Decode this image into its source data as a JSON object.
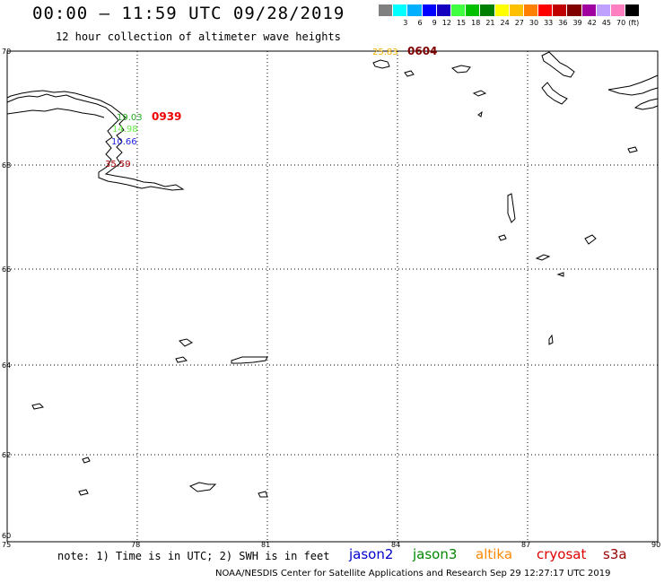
{
  "header": {
    "title": "00:00 – 11:59 UTC 09/28/2019",
    "subtitle": "12 hour collection of altimeter wave heights"
  },
  "colorbar": {
    "colors": [
      "#808080",
      "#00ffff",
      "#00b0ff",
      "#0000ff",
      "#1500c0",
      "#40ff40",
      "#00c000",
      "#008000",
      "#ffff00",
      "#ffc000",
      "#ff8000",
      "#ff0000",
      "#c00000",
      "#800000",
      "#a000a0",
      "#c0a0ff",
      "#ff80c0",
      "#000000"
    ],
    "labels": [
      "3",
      "6",
      "9",
      "12",
      "15",
      "18",
      "21",
      "24",
      "27",
      "30",
      "33",
      "36",
      "39",
      "42",
      "45",
      "70"
    ],
    "unit": "(ft)"
  },
  "map": {
    "lat_labels": [
      "70",
      "68",
      "66",
      "64",
      "62",
      "60"
    ],
    "lon_labels": [
      "75",
      "78",
      "81",
      "84",
      "87",
      "90"
    ],
    "observations": [
      {
        "text": "19.03",
        "color": "#22aa22"
      },
      {
        "text": "14.98",
        "color": "#66ee44"
      },
      {
        "text": "10.66",
        "color": "#2222dd"
      },
      {
        "text": "35.59",
        "color": "#aa0000"
      },
      {
        "text": "0939",
        "color": "#ee0000"
      },
      {
        "text": "25.83",
        "color": "#f0b000"
      },
      {
        "text": "0604",
        "color": "#800000"
      }
    ]
  },
  "footer": {
    "note": "note: 1) Time is in UTC; 2) SWH is in feet",
    "satellites": [
      {
        "name": "jason2",
        "color": "#0000cc"
      },
      {
        "name": "jason3",
        "color": "#008800"
      },
      {
        "name": "altika",
        "color": "#ff8800"
      },
      {
        "name": "cryosat",
        "color": "#dd0000"
      },
      {
        "name": "s3a",
        "color": "#990000"
      }
    ],
    "credit": "NOAA/NESDIS Center for Satellite Applications and Research    Sep 29 12:27:17 UTC 2019"
  }
}
